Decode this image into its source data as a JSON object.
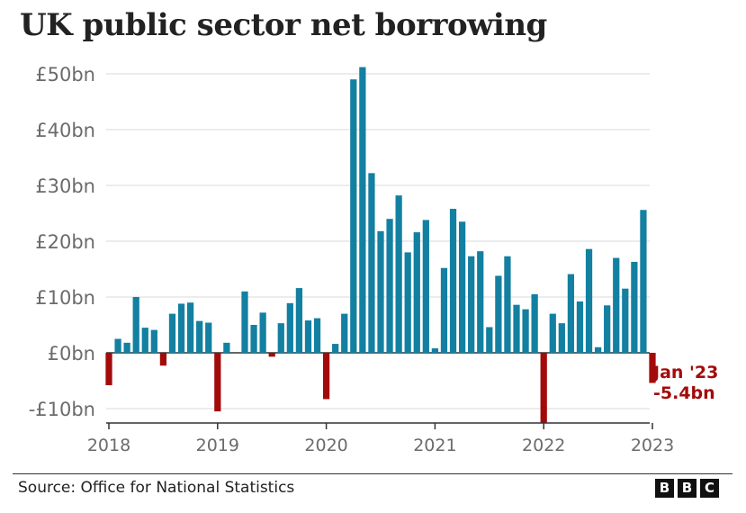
{
  "title": "UK public sector net borrowing",
  "source": "Source: Office for National Statistics",
  "logo": [
    "B",
    "B",
    "C"
  ],
  "colors": {
    "positive": "#1380a1",
    "negative": "#a30b0b",
    "grid": "#d9d9d9",
    "zero": "#333333"
  },
  "chart_data": {
    "type": "bar",
    "ylim": [
      -10,
      50
    ],
    "yticks": [
      -10,
      0,
      10,
      20,
      30,
      40,
      50
    ],
    "ytick_labels": [
      "-£10bn",
      "£0bn",
      "£10bn",
      "£20bn",
      "£30bn",
      "£40bn",
      "£50bn"
    ],
    "xticks": [
      "2018",
      "2019",
      "2020",
      "2021",
      "2022",
      "2023"
    ],
    "grid": true,
    "start": "Jan 2018",
    "values": [
      -5.8,
      2.5,
      1.8,
      10.0,
      4.5,
      4.1,
      -2.3,
      7.0,
      8.8,
      9.0,
      5.7,
      5.4,
      -10.5,
      1.8,
      0,
      11.0,
      5.0,
      7.2,
      -0.7,
      5.3,
      8.9,
      11.6,
      5.8,
      6.2,
      -8.3,
      1.6,
      7.0,
      49.0,
      51.2,
      32.2,
      21.8,
      24.0,
      28.2,
      18.0,
      21.6,
      23.8,
      0.8,
      15.2,
      25.8,
      23.5,
      17.3,
      18.2,
      4.6,
      13.8,
      17.3,
      8.6,
      7.8,
      10.5,
      -12.5,
      7.0,
      5.3,
      14.1,
      9.2,
      18.6,
      1.0,
      8.5,
      17.0,
      11.5,
      16.3,
      25.6,
      -5.4
    ],
    "annotation": [
      "Jan '23",
      "-5.4bn"
    ]
  }
}
